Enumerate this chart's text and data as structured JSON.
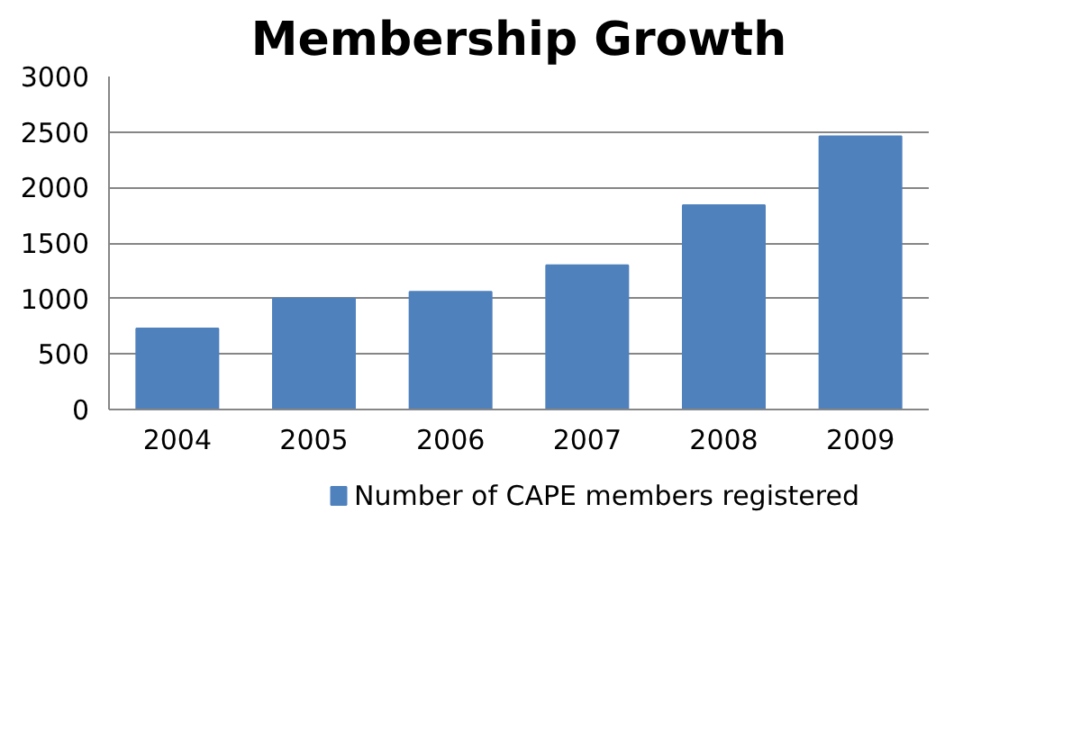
{
  "chart_data": {
    "type": "bar",
    "title": "Membership Growth",
    "categories": [
      "2004",
      "2005",
      "2006",
      "2007",
      "2008",
      "2009"
    ],
    "series": [
      {
        "name": "Number of CAPE members registered",
        "color": "#4f81bd",
        "values": [
          730,
          1000,
          1060,
          1300,
          1840,
          2460
        ]
      }
    ],
    "ylim": [
      0,
      3000
    ],
    "yticks": [
      0,
      500,
      1000,
      1500,
      2000,
      2500,
      3000
    ],
    "grid": "y",
    "legend": "bottom"
  }
}
